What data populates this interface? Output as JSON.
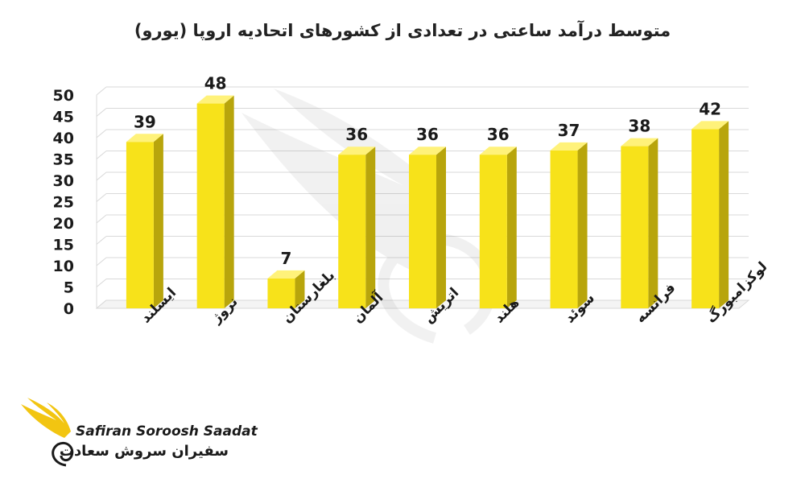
{
  "chart_data": {
    "type": "bar",
    "title": "متوسط درآمد ساعتی در تعدادی از کشورهای اتحادیه اروپا (یورو)",
    "categories": [
      "ایسلند",
      "نروژ",
      "بلغارستان",
      "آلمان",
      "اتریش",
      "هلند",
      "سوئد",
      "فرانسه",
      "لوکزامبورگ"
    ],
    "values": [
      39,
      48,
      7,
      36,
      36,
      36,
      37,
      38,
      42
    ],
    "yticks": [
      "0",
      "5",
      "10",
      "15",
      "20",
      "25",
      "30",
      "35",
      "40",
      "45",
      "50"
    ],
    "ylim": [
      0,
      50
    ],
    "grid": true,
    "style": "3d-column",
    "bar_color": "#f7e21a",
    "bar_side_color": "#b8a50c",
    "bar_top_color": "#fff27a"
  },
  "branding": {
    "name_en": "Safiran Soroosh Saadat",
    "name_fa": "سفیران سروش سعادت",
    "accent_color": "#f2c511"
  }
}
